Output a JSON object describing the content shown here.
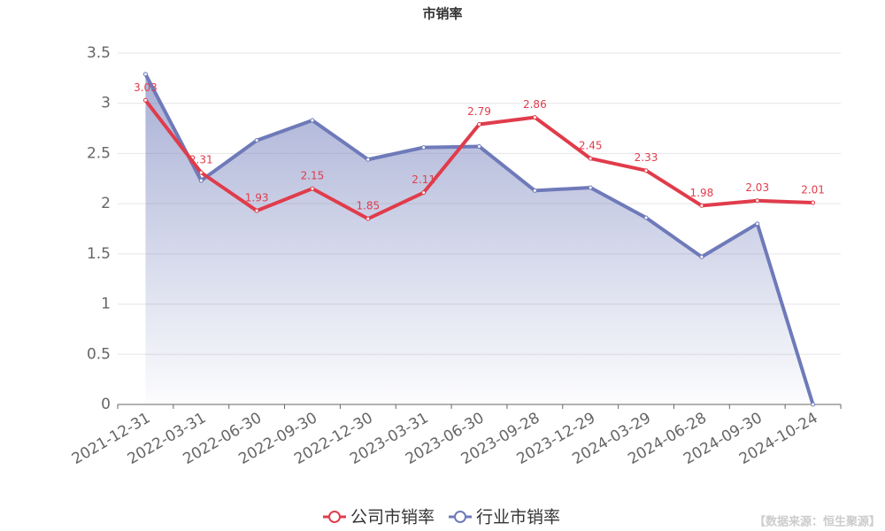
{
  "chart_data": {
    "type": "line",
    "title": "市销率",
    "categories": [
      "2021-12-31",
      "2022-03-31",
      "2022-06-30",
      "2022-09-30",
      "2022-12-30",
      "2023-03-31",
      "2023-06-30",
      "2023-09-28",
      "2023-12-29",
      "2024-03-29",
      "2024-06-28",
      "2024-09-30",
      "2024-10-24"
    ],
    "series": [
      {
        "name": "公司市销率",
        "color": "#e03c4b",
        "labels": true,
        "values": [
          3.03,
          2.31,
          1.93,
          2.15,
          1.85,
          2.11,
          2.79,
          2.86,
          2.45,
          2.33,
          1.98,
          2.03,
          2.01
        ]
      },
      {
        "name": "行业市销率",
        "color": "#6e7ab9",
        "area": true,
        "values": [
          3.29,
          2.23,
          2.63,
          2.83,
          2.44,
          2.56,
          2.57,
          2.13,
          2.16,
          1.86,
          1.47,
          1.8,
          0
        ]
      }
    ],
    "ylim": [
      0,
      3.5
    ],
    "yticks": [
      0,
      0.5,
      1,
      1.5,
      2,
      2.5,
      3,
      3.5
    ],
    "grid": true,
    "legend": "bottom",
    "source": "【数据来源：恒生聚源】"
  }
}
